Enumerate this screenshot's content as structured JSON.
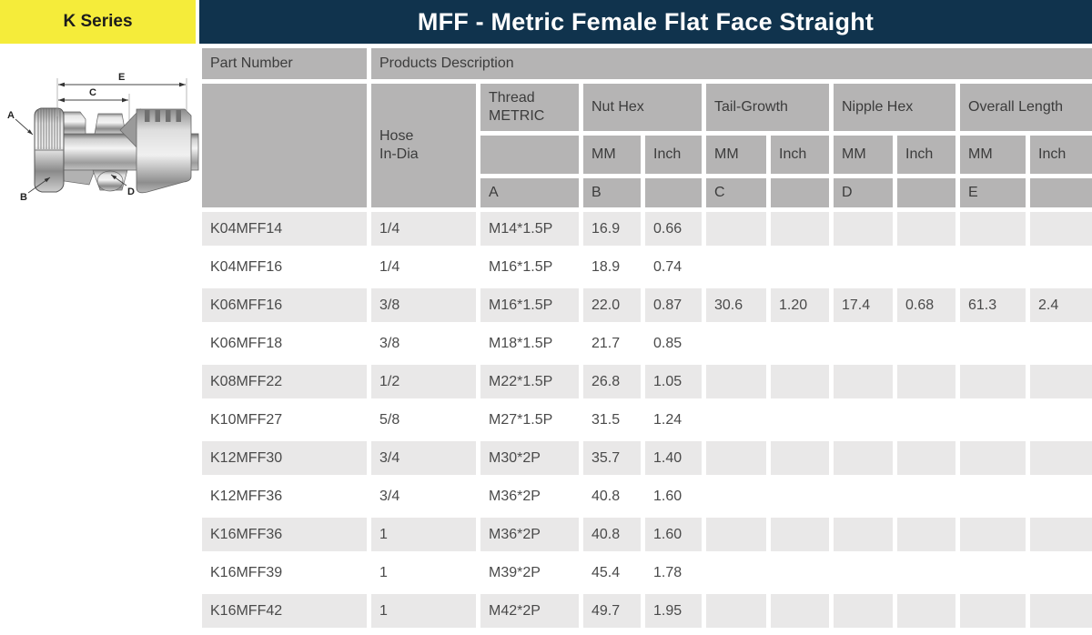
{
  "series_badge": "K Series",
  "title": "MFF - Metric Female Flat Face Straight",
  "colors": {
    "accent_yellow": "#f5ec3a",
    "navy": "#10334d",
    "header_gray": "#b5b4b4",
    "stripe_gray": "#e9e8e8"
  },
  "diagram": {
    "labels": {
      "A": "A",
      "B": "B",
      "C": "C",
      "D": "D",
      "E": "E"
    }
  },
  "table": {
    "headers": {
      "part_number": "Part Number",
      "products_description": "Products Description",
      "hose_line1": "Hose",
      "hose_line2": "In-Dia",
      "thread_line1": "Thread",
      "thread_line2": "METRIC",
      "groups": [
        "Nut Hex",
        "Tail-Growth",
        "Nipple Hex",
        "Overall Length"
      ],
      "unit_row": [
        "MM",
        "Inch",
        "MM",
        "Inch",
        "MM",
        "Inch",
        "MM",
        "Inch"
      ],
      "ref_row": [
        "A",
        "B",
        "",
        "C",
        "",
        "D",
        "",
        "E",
        ""
      ]
    },
    "rows": [
      [
        "K04MFF14",
        "1/4",
        "M14*1.5P",
        "16.9",
        "0.66",
        "",
        "",
        "",
        "",
        "",
        ""
      ],
      [
        "K04MFF16",
        "1/4",
        "M16*1.5P",
        "18.9",
        "0.74",
        "",
        "",
        "",
        "",
        "",
        ""
      ],
      [
        "K06MFF16",
        "3/8",
        "M16*1.5P",
        "22.0",
        "0.87",
        "30.6",
        "1.20",
        "17.4",
        "0.68",
        "61.3",
        "2.4"
      ],
      [
        "K06MFF18",
        "3/8",
        "M18*1.5P",
        "21.7",
        "0.85",
        "",
        "",
        "",
        "",
        "",
        ""
      ],
      [
        "K08MFF22",
        "1/2",
        "M22*1.5P",
        "26.8",
        "1.05",
        "",
        "",
        "",
        "",
        "",
        ""
      ],
      [
        "K10MFF27",
        "5/8",
        "M27*1.5P",
        "31.5",
        "1.24",
        "",
        "",
        "",
        "",
        "",
        ""
      ],
      [
        "K12MFF30",
        "3/4",
        "M30*2P",
        "35.7",
        "1.40",
        "",
        "",
        "",
        "",
        "",
        ""
      ],
      [
        "K12MFF36",
        "3/4",
        "M36*2P",
        "40.8",
        "1.60",
        "",
        "",
        "",
        "",
        "",
        ""
      ],
      [
        "K16MFF36",
        "1",
        "M36*2P",
        "40.8",
        "1.60",
        "",
        "",
        "",
        "",
        "",
        ""
      ],
      [
        "K16MFF39",
        "1",
        "M39*2P",
        "45.4",
        "1.78",
        "",
        "",
        "",
        "",
        "",
        ""
      ],
      [
        "K16MFF42",
        "1",
        "M42*2P",
        "49.7",
        "1.95",
        "",
        "",
        "",
        "",
        "",
        ""
      ]
    ]
  }
}
